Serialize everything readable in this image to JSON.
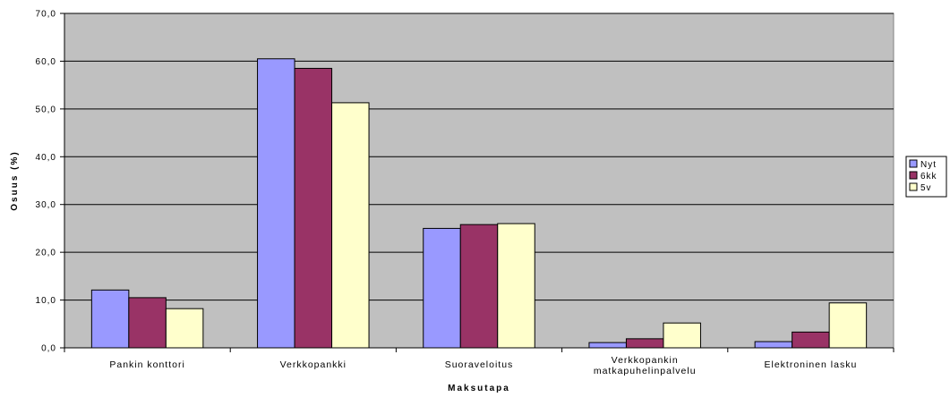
{
  "chart_data": {
    "type": "bar",
    "categories": [
      [
        "Pankin konttori"
      ],
      [
        "Verkkopankki"
      ],
      [
        "Suoraveloitus"
      ],
      [
        "Verkkopankin",
        "matkapuhelinpalvelu"
      ],
      [
        "Elektroninen lasku"
      ]
    ],
    "series": [
      {
        "name": "Nyt",
        "color": "#9999ff",
        "values": [
          12.1,
          60.5,
          25.0,
          1.1,
          1.3
        ]
      },
      {
        "name": "6kk",
        "color": "#993366",
        "values": [
          10.5,
          58.5,
          25.8,
          1.9,
          3.3
        ]
      },
      {
        "name": "5v",
        "color": "#ffffcc",
        "values": [
          8.2,
          51.3,
          26.0,
          5.2,
          9.4
        ]
      }
    ],
    "title": "",
    "xlabel": "Maksutapa",
    "ylabel": "Osuus (%)",
    "ylim": [
      0,
      70
    ],
    "yticks": [
      "0,0",
      "10,0",
      "20,0",
      "30,0",
      "40,0",
      "50,0",
      "60,0",
      "70,0"
    ],
    "plot_background": "#c0c0c0",
    "grid": true,
    "legend_position": "right"
  }
}
